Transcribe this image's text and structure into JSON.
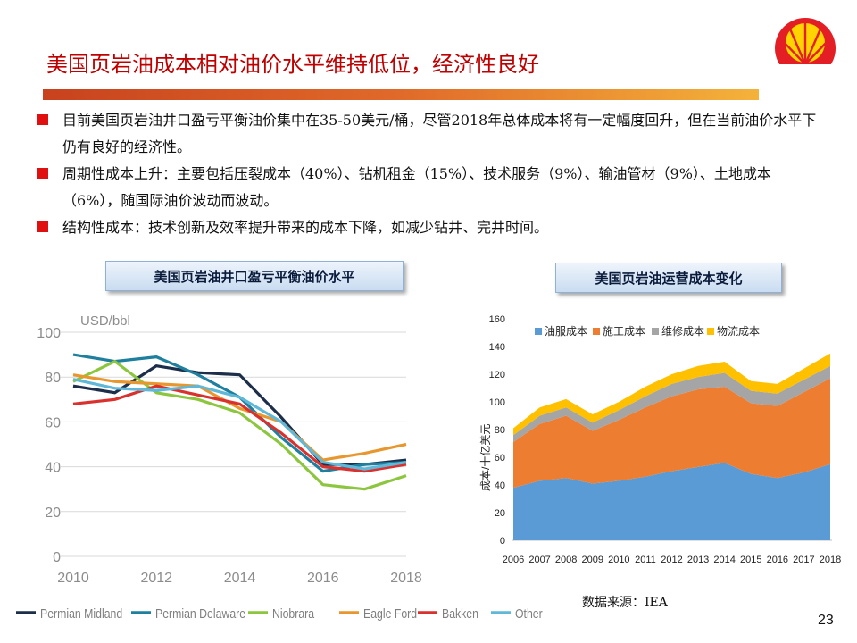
{
  "slide": {
    "title": "美国页岩油成本相对油价水平维持低位，经济性良好",
    "page_number": "23",
    "source": "数据来源：IEA",
    "colors": {
      "title": "#c00000",
      "bullet": "#e01010"
    }
  },
  "bullets": [
    "目前美国页岩油井口盈亏平衡油价集中在35-50美元/桶，尽管2018年总体成本将有一定幅度回升，但在当前油价水平下仍有良好的经济性。",
    "周期性成本上升：主要包括压裂成本（40%）、钻机租金（15%）、技术服务（9%）、输油管材（9%）、土地成本（6%），随国际油价波动而波动。",
    "结构性成本：技术创新及效率提升带来的成本下降，如减少钻井、完井时间。"
  ],
  "chart_data": [
    {
      "type": "line",
      "title": "美国页岩油井口盈亏平衡油价水平",
      "ylabel": "USD/bbl",
      "xlabel": "",
      "ylim": [
        0,
        100
      ],
      "yticks": [
        0,
        20,
        40,
        60,
        80,
        100
      ],
      "xticks": [
        2010,
        2012,
        2014,
        2016,
        2018
      ],
      "x": [
        2010,
        2011,
        2012,
        2013,
        2014,
        2015,
        2016,
        2017,
        2018
      ],
      "grid": true,
      "legend": "bottom",
      "series": [
        {
          "name": "Permian Midland",
          "color": "#1c2e4a",
          "values": [
            76,
            73,
            85,
            82,
            81,
            62,
            41,
            41,
            43
          ]
        },
        {
          "name": "Permian Delaware",
          "color": "#1f7f9e",
          "values": [
            90,
            87,
            89,
            81,
            71,
            53,
            38,
            41,
            42
          ]
        },
        {
          "name": "Niobrara",
          "color": "#8cc63f",
          "values": [
            78,
            87,
            73,
            70,
            64,
            50,
            32,
            30,
            36
          ]
        },
        {
          "name": "Eagle Ford",
          "color": "#e8972e",
          "values": [
            81,
            78,
            77,
            76,
            66,
            60,
            43,
            46,
            50
          ]
        },
        {
          "name": "Bakken",
          "color": "#d9312e",
          "values": [
            68,
            70,
            76,
            72,
            68,
            55,
            40,
            38,
            41
          ]
        },
        {
          "name": "Other",
          "color": "#5fb8d8",
          "values": [
            79,
            75,
            74,
            76,
            71,
            60,
            42,
            39,
            42
          ]
        }
      ]
    },
    {
      "type": "area",
      "stacked": true,
      "title": "美国页岩油运营成本变化",
      "ylabel": "成本/十亿美元",
      "xlabel": "",
      "ylim": [
        0,
        160
      ],
      "yticks": [
        0,
        20,
        40,
        60,
        80,
        100,
        120,
        140,
        160
      ],
      "categories": [
        "2006",
        "2007",
        "2008",
        "2009",
        "2010",
        "2011",
        "2012",
        "2013",
        "2014",
        "2015",
        "2016",
        "2017",
        "2018"
      ],
      "legend": "top",
      "series": [
        {
          "name": "油服成本",
          "color": "#5b9bd5",
          "values": [
            38,
            43,
            45,
            41,
            43,
            46,
            50,
            53,
            56,
            48,
            45,
            49,
            55
          ]
        },
        {
          "name": "施工成本",
          "color": "#ed7d31",
          "values": [
            33,
            41,
            45,
            38,
            44,
            50,
            54,
            56,
            55,
            51,
            52,
            58,
            62
          ]
        },
        {
          "name": "维修成本",
          "color": "#a5a5a5",
          "values": [
            5,
            6,
            6,
            6,
            7,
            8,
            9,
            9,
            10,
            9,
            9,
            9,
            9
          ]
        },
        {
          "name": "物流成本",
          "color": "#ffc000",
          "values": [
            5,
            6,
            6,
            6,
            6,
            7,
            7,
            8,
            8,
            7,
            7,
            8,
            9
          ]
        }
      ]
    }
  ]
}
